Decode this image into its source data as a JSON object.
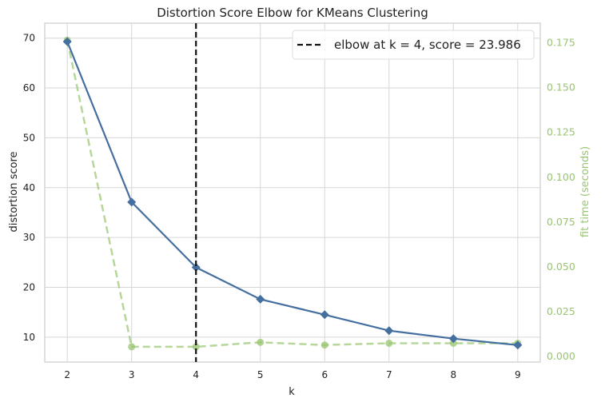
{
  "chart_data": {
    "type": "line",
    "title": "Distortion Score Elbow for KMeans Clustering",
    "xlabel": "k",
    "ylabel": "distortion score",
    "y2label": "fit time (seconds)",
    "x": [
      2,
      3,
      4,
      5,
      6,
      7,
      8,
      9
    ],
    "xlim": [
      1.65,
      9.35
    ],
    "ylim": [
      5.0,
      73.0
    ],
    "y2lim": [
      -0.0035,
      0.1855
    ],
    "xticks": [
      "2",
      "3",
      "4",
      "5",
      "6",
      "7",
      "8",
      "9"
    ],
    "yticks": [
      "10",
      "20",
      "30",
      "40",
      "50",
      "60",
      "70"
    ],
    "y2ticks": [
      "0.000",
      "0.025",
      "0.050",
      "0.075",
      "0.100",
      "0.125",
      "0.150",
      "0.175"
    ],
    "grid": true,
    "legend_position": "top-right",
    "series": [
      {
        "axis": "left",
        "color": "#446f9e",
        "marker": "diamond",
        "style": "solid",
        "values": [
          69.3,
          37.1,
          24.0,
          17.6,
          14.5,
          11.3,
          9.7,
          8.4
        ]
      },
      {
        "axis": "right",
        "color": "#98c46f",
        "marker": "circle",
        "style": "dashed",
        "values": [
          0.176,
          0.005,
          0.005,
          0.0075,
          0.006,
          0.007,
          0.007,
          0.007
        ]
      }
    ],
    "elbow": {
      "k": 4,
      "score": 23.986,
      "legend_text": "elbow at k = 4, score = 23.986",
      "color": "#111111"
    }
  }
}
